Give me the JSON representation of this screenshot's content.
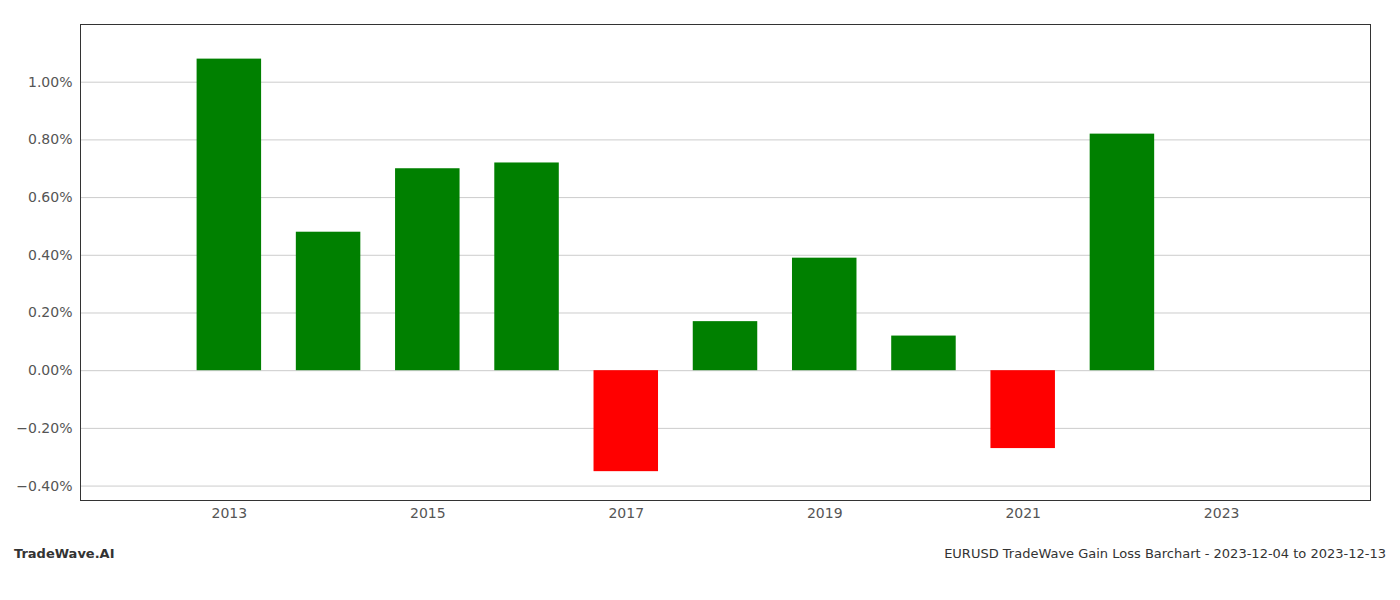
{
  "chart_data": {
    "type": "bar",
    "title": "EURUSD TradeWave Gain Loss Barchart - 2023-12-04 to 2023-12-13",
    "footnote": "TradeWave.AI",
    "x": [
      2013,
      2014,
      2015,
      2016,
      2017,
      2018,
      2019,
      2020,
      2021,
      2022
    ],
    "values": [
      1.08,
      0.48,
      0.7,
      0.72,
      -0.35,
      0.17,
      0.39,
      0.12,
      -0.27,
      0.82
    ],
    "colors": [
      "#008000",
      "#008000",
      "#008000",
      "#008000",
      "#ff0000",
      "#008000",
      "#008000",
      "#008000",
      "#ff0000",
      "#008000"
    ],
    "xlim": [
      2011.5,
      2024.5
    ],
    "xticks": [
      2013,
      2015,
      2017,
      2019,
      2021,
      2023
    ],
    "ylim": [
      -0.45,
      1.2
    ],
    "yticks": [
      {
        "value": -0.4,
        "label": "−0.40%"
      },
      {
        "value": -0.2,
        "label": "−0.20%"
      },
      {
        "value": 0,
        "label": "0.00%"
      },
      {
        "value": 0.2,
        "label": "0.20%"
      },
      {
        "value": 0.4,
        "label": "0.40%"
      },
      {
        "value": 0.6,
        "label": "0.60%"
      },
      {
        "value": 0.8,
        "label": "0.80%"
      },
      {
        "value": 1.0,
        "label": "1.00%"
      }
    ],
    "grid": true
  }
}
